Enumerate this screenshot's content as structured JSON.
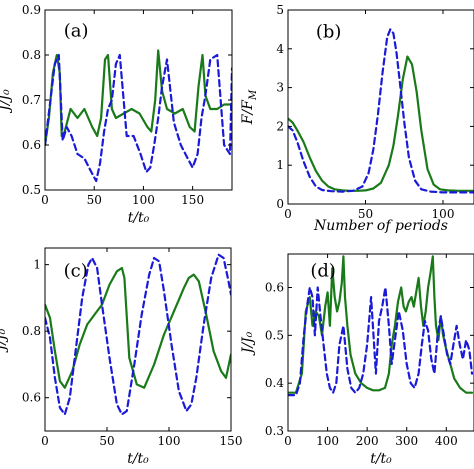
{
  "colors": {
    "solid": "#1a7a1a",
    "dashed": "#1a1ad8",
    "axis": "#000000"
  },
  "chart_data": [
    {
      "type": "line",
      "panel_label": "(a)",
      "xlabel": "t/t₀",
      "ylabel": "J/J₀",
      "xlim": [
        0,
        190
      ],
      "ylim": [
        0.5,
        0.9
      ],
      "xticks": [
        0,
        50,
        100,
        150
      ],
      "yticks": [
        0.5,
        0.6,
        0.7,
        0.8,
        0.9
      ],
      "ytick_labels": [
        "0.5",
        "0.6",
        "0.7",
        "0.8",
        "0.9"
      ],
      "series": [
        {
          "style": "solid",
          "x": [
            0,
            4,
            8,
            12,
            15,
            17,
            20,
            26,
            33,
            40,
            48,
            53,
            57,
            61,
            64,
            68,
            72,
            80,
            88,
            96,
            104,
            108,
            112,
            115,
            119,
            124,
            132,
            140,
            147,
            152,
            156,
            160,
            163,
            168,
            175,
            182,
            190
          ],
          "y": [
            0.6,
            0.66,
            0.76,
            0.8,
            0.76,
            0.62,
            0.63,
            0.68,
            0.66,
            0.68,
            0.64,
            0.62,
            0.66,
            0.79,
            0.8,
            0.68,
            0.66,
            0.67,
            0.68,
            0.67,
            0.64,
            0.63,
            0.7,
            0.81,
            0.72,
            0.68,
            0.67,
            0.68,
            0.64,
            0.63,
            0.73,
            0.8,
            0.71,
            0.68,
            0.68,
            0.69,
            0.69
          ]
        },
        {
          "style": "dashed",
          "x": [
            0,
            5,
            10,
            14,
            18,
            22,
            27,
            33,
            40,
            47,
            52,
            56,
            60,
            64,
            68,
            72,
            76,
            83,
            90,
            97,
            103,
            107,
            111,
            115,
            119,
            124,
            131,
            138,
            145,
            150,
            155,
            159,
            163,
            168,
            175,
            182,
            188,
            190
          ],
          "y": [
            0.6,
            0.69,
            0.78,
            0.8,
            0.61,
            0.64,
            0.62,
            0.58,
            0.57,
            0.54,
            0.52,
            0.56,
            0.63,
            0.68,
            0.7,
            0.78,
            0.8,
            0.62,
            0.62,
            0.58,
            0.54,
            0.55,
            0.6,
            0.66,
            0.73,
            0.79,
            0.65,
            0.6,
            0.57,
            0.55,
            0.58,
            0.66,
            0.71,
            0.79,
            0.8,
            0.6,
            0.58,
            0.77
          ]
        }
      ]
    },
    {
      "type": "line",
      "panel_label": "(b)",
      "xlabel": "Number of periods",
      "ylabel": "F/F_M",
      "xlim": [
        0,
        120
      ],
      "ylim": [
        0,
        5
      ],
      "xticks": [
        0,
        50,
        100
      ],
      "yticks": [
        0,
        1,
        2,
        3,
        4,
        5
      ],
      "ytick_labels": [
        "0",
        "1",
        "2",
        "3",
        "4",
        "5"
      ],
      "series": [
        {
          "style": "solid",
          "x": [
            0,
            3,
            6,
            10,
            14,
            18,
            22,
            26,
            30,
            35,
            40,
            45,
            50,
            55,
            60,
            65,
            68,
            71,
            74,
            77,
            80,
            83,
            86,
            90,
            94,
            98,
            103,
            110,
            115,
            120
          ],
          "y": [
            2.2,
            2.1,
            1.9,
            1.6,
            1.2,
            0.85,
            0.6,
            0.45,
            0.38,
            0.35,
            0.34,
            0.34,
            0.35,
            0.4,
            0.55,
            1.0,
            1.5,
            2.3,
            3.2,
            3.8,
            3.6,
            2.9,
            1.9,
            0.9,
            0.5,
            0.38,
            0.35,
            0.34,
            0.34,
            0.34
          ]
        },
        {
          "style": "dashed",
          "x": [
            0,
            3,
            6,
            10,
            14,
            18,
            22,
            28,
            35,
            42,
            48,
            52,
            55,
            58,
            61,
            64,
            66,
            68,
            70,
            72,
            75,
            78,
            82,
            86,
            92,
            100,
            110,
            120
          ],
          "y": [
            2.0,
            1.9,
            1.6,
            1.1,
            0.7,
            0.45,
            0.36,
            0.33,
            0.32,
            0.34,
            0.45,
            0.8,
            1.4,
            2.3,
            3.4,
            4.3,
            4.5,
            4.4,
            3.9,
            3.2,
            2.1,
            1.2,
            0.6,
            0.38,
            0.32,
            0.3,
            0.3,
            0.3
          ]
        }
      ]
    },
    {
      "type": "line",
      "panel_label": "(c)",
      "xlabel": "t/t₀",
      "ylabel": "J/J₀",
      "xlim": [
        0,
        150
      ],
      "ylim": [
        0.5,
        1.05
      ],
      "xticks": [
        0,
        50,
        100,
        150
      ],
      "yticks": [
        0.6,
        0.8,
        1.0
      ],
      "ytick_labels": [
        "0.6",
        "0.8",
        "1"
      ],
      "series": [
        {
          "style": "solid",
          "x": [
            0,
            4,
            8,
            12,
            16,
            22,
            28,
            34,
            40,
            46,
            52,
            58,
            62,
            64,
            68,
            74,
            80,
            88,
            96,
            104,
            112,
            116,
            120,
            124,
            130,
            136,
            142,
            146,
            150
          ],
          "y": [
            0.88,
            0.84,
            0.74,
            0.65,
            0.63,
            0.68,
            0.76,
            0.82,
            0.85,
            0.88,
            0.94,
            0.98,
            0.99,
            0.96,
            0.72,
            0.64,
            0.63,
            0.7,
            0.79,
            0.86,
            0.93,
            0.96,
            0.97,
            0.95,
            0.85,
            0.74,
            0.68,
            0.66,
            0.73
          ]
        },
        {
          "style": "dashed",
          "x": [
            0,
            4,
            8,
            12,
            16,
            20,
            25,
            30,
            35,
            38,
            42,
            46,
            52,
            58,
            62,
            66,
            72,
            78,
            84,
            88,
            92,
            96,
            102,
            108,
            114,
            118,
            122,
            128,
            134,
            140,
            144,
            148,
            150
          ],
          "y": [
            0.84,
            0.78,
            0.66,
            0.57,
            0.55,
            0.6,
            0.75,
            0.9,
            1.0,
            1.02,
            0.99,
            0.88,
            0.72,
            0.58,
            0.55,
            0.56,
            0.7,
            0.85,
            0.97,
            1.02,
            1.01,
            0.92,
            0.76,
            0.62,
            0.56,
            0.58,
            0.66,
            0.82,
            0.96,
            1.03,
            1.02,
            0.95,
            0.91
          ]
        }
      ]
    },
    {
      "type": "line",
      "panel_label": "(d)",
      "xlabel": "t/t₀",
      "ylabel": "J/J₀",
      "xlim": [
        0,
        470
      ],
      "ylim": [
        0.3,
        0.67
      ],
      "xticks": [
        0,
        100,
        200,
        300,
        400
      ],
      "yticks": [
        0.3,
        0.4,
        0.5,
        0.6
      ],
      "ytick_labels": [
        "0.3",
        "0.4",
        "0.5",
        "0.6"
      ],
      "series": [
        {
          "style": "solid",
          "x": [
            0,
            20,
            35,
            45,
            55,
            62,
            70,
            78,
            86,
            94,
            100,
            106,
            112,
            118,
            124,
            130,
            136,
            140,
            144,
            150,
            158,
            170,
            185,
            200,
            215,
            230,
            245,
            255,
            262,
            270,
            278,
            286,
            292,
            298,
            305,
            312,
            318,
            324,
            330,
            336,
            342,
            348,
            354,
            360,
            366,
            370,
            374,
            380,
            386,
            392,
            400,
            410,
            420,
            435,
            450,
            465
          ],
          "y": [
            0.38,
            0.38,
            0.42,
            0.55,
            0.58,
            0.52,
            0.55,
            0.54,
            0.5,
            0.56,
            0.59,
            0.52,
            0.64,
            0.58,
            0.55,
            0.57,
            0.61,
            0.665,
            0.58,
            0.52,
            0.46,
            0.42,
            0.4,
            0.39,
            0.385,
            0.385,
            0.39,
            0.42,
            0.48,
            0.52,
            0.57,
            0.6,
            0.56,
            0.55,
            0.57,
            0.58,
            0.56,
            0.59,
            0.62,
            0.56,
            0.52,
            0.55,
            0.6,
            0.63,
            0.665,
            0.58,
            0.52,
            0.49,
            0.54,
            0.5,
            0.47,
            0.44,
            0.41,
            0.39,
            0.38,
            0.38
          ]
        },
        {
          "style": "dashed",
          "x": [
            0,
            20,
            30,
            40,
            48,
            55,
            62,
            68,
            75,
            82,
            90,
            98,
            106,
            114,
            122,
            130,
            140,
            150,
            160,
            170,
            180,
            190,
            200,
            210,
            216,
            222,
            230,
            238,
            246,
            255,
            262,
            270,
            280,
            290,
            300,
            310,
            320,
            330,
            338,
            346,
            354,
            362,
            370,
            378,
            386,
            394,
            402,
            410,
            418,
            426,
            434,
            442,
            450,
            458,
            465
          ],
          "y": [
            0.375,
            0.375,
            0.4,
            0.5,
            0.56,
            0.6,
            0.58,
            0.5,
            0.6,
            0.54,
            0.48,
            0.42,
            0.39,
            0.38,
            0.4,
            0.48,
            0.52,
            0.43,
            0.39,
            0.38,
            0.39,
            0.42,
            0.48,
            0.58,
            0.5,
            0.42,
            0.53,
            0.56,
            0.6,
            0.52,
            0.44,
            0.49,
            0.55,
            0.51,
            0.44,
            0.4,
            0.39,
            0.42,
            0.48,
            0.53,
            0.51,
            0.45,
            0.42,
            0.5,
            0.54,
            0.5,
            0.46,
            0.44,
            0.48,
            0.52,
            0.48,
            0.45,
            0.49,
            0.47,
            0.42
          ]
        }
      ]
    }
  ]
}
